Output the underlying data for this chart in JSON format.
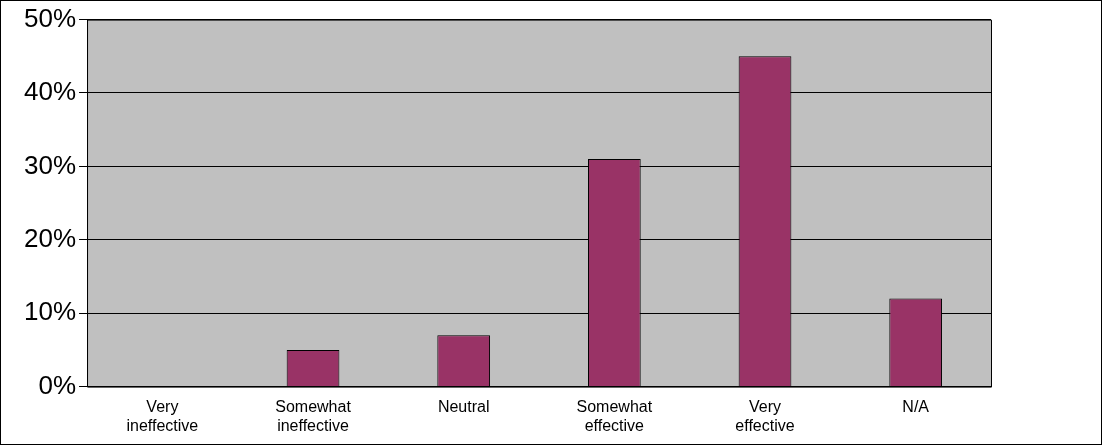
{
  "chart_data": {
    "type": "bar",
    "categories": [
      "Very ineffective",
      "Somewhat ineffective",
      "Neutral",
      "Somewhat effective",
      "Very effective",
      "N/A"
    ],
    "values": [
      0,
      5,
      7,
      31,
      45,
      12
    ],
    "color": "#993366",
    "ylim": [
      0,
      50
    ],
    "yticks": [
      {
        "value": 0,
        "label": "0%"
      },
      {
        "value": 10,
        "label": "10%"
      },
      {
        "value": 20,
        "label": "20%"
      },
      {
        "value": 30,
        "label": "30%"
      },
      {
        "value": 40,
        "label": "40%"
      },
      {
        "value": 50,
        "label": "50%"
      }
    ],
    "grid": "y",
    "legend": false
  }
}
